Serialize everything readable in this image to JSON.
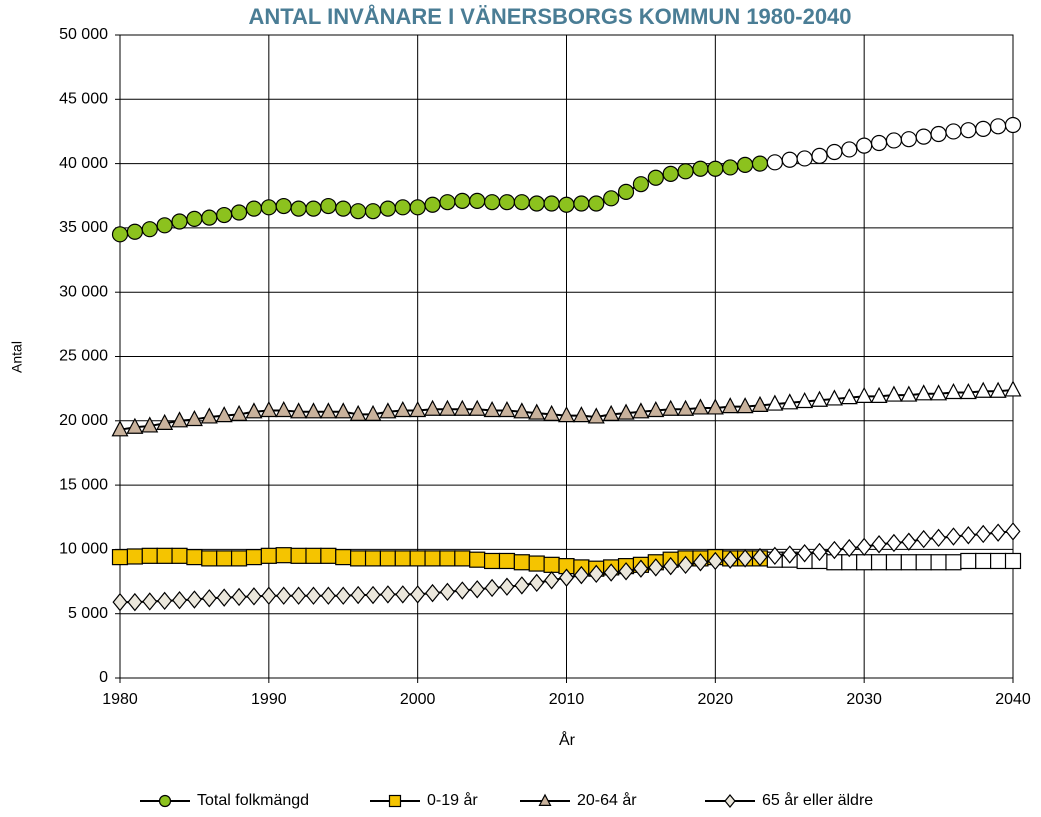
{
  "chart_data": {
    "type": "line",
    "title": "ANTAL INVÅNARE I VÄNERSBORGS KOMMUN 1980-2040",
    "xlabel": "År",
    "ylabel": "Antal",
    "x": [
      1980,
      1981,
      1982,
      1983,
      1984,
      1985,
      1986,
      1987,
      1988,
      1989,
      1990,
      1991,
      1992,
      1993,
      1994,
      1995,
      1996,
      1997,
      1998,
      1999,
      2000,
      2001,
      2002,
      2003,
      2004,
      2005,
      2006,
      2007,
      2008,
      2009,
      2010,
      2011,
      2012,
      2013,
      2014,
      2015,
      2016,
      2017,
      2018,
      2019,
      2020,
      2021,
      2022,
      2023,
      2024,
      2025,
      2026,
      2027,
      2028,
      2029,
      2030,
      2031,
      2032,
      2033,
      2034,
      2035,
      2036,
      2037,
      2038,
      2039,
      2040
    ],
    "xlim": [
      1980,
      2040
    ],
    "xticks": [
      1980,
      1990,
      2000,
      2010,
      2020,
      2030,
      2040
    ],
    "ylim": [
      0,
      50000
    ],
    "yticks": [
      0,
      {
        "value": 5000,
        "label": "5 000"
      },
      {
        "value": 10000,
        "label": "10 000"
      },
      {
        "value": 15000,
        "label": "15 000"
      },
      {
        "value": 20000,
        "label": "20 000"
      },
      {
        "value": 25000,
        "label": "25 000"
      },
      {
        "value": 30000,
        "label": "30 000"
      },
      {
        "value": 35000,
        "label": "35 000"
      },
      {
        "value": 40000,
        "label": "40 000"
      },
      {
        "value": 45000,
        "label": "45 000"
      },
      {
        "value": 50000,
        "label": "50 000"
      }
    ],
    "grid": true,
    "legend": "bottom",
    "series": [
      {
        "name": "Total folkmängd",
        "color": "#000000",
        "marker": "circle",
        "values": [
          34500,
          34700,
          34900,
          35200,
          35500,
          35700,
          35800,
          36000,
          36200,
          36500,
          36600,
          36700,
          36500,
          36500,
          36700,
          36500,
          36300,
          36300,
          36500,
          36600,
          36600,
          36800,
          37000,
          37100,
          37100,
          37000,
          37000,
          37000,
          36900,
          36900,
          36800,
          36900,
          36900,
          37300,
          37800,
          38400,
          38900,
          39200,
          39400,
          39600,
          39600,
          39700,
          39900,
          40000,
          40100,
          40300,
          40400,
          40600,
          40900,
          41100,
          41400,
          41600,
          41800,
          41900,
          42100,
          42300,
          42500,
          42600,
          42700,
          42900,
          43000
        ],
        "marker_fills": [
          "#8cc21e",
          "#8cc21e",
          "#8cc21e",
          "#8cc21e",
          "#8cc21e",
          "#8cc21e",
          "#8cc21e",
          "#8cc21e",
          "#8cc21e",
          "#8cc21e",
          "#8cc21e",
          "#8cc21e",
          "#8cc21e",
          "#8cc21e",
          "#8cc21e",
          "#8cc21e",
          "#8cc21e",
          "#8cc21e",
          "#8cc21e",
          "#8cc21e",
          "#8cc21e",
          "#8cc21e",
          "#8cc21e",
          "#8cc21e",
          "#8cc21e",
          "#8cc21e",
          "#8cc21e",
          "#8cc21e",
          "#8cc21e",
          "#8cc21e",
          "#8cc21e",
          "#8cc21e",
          "#8cc21e",
          "#8cc21e",
          "#8cc21e",
          "#8cc21e",
          "#8cc21e",
          "#8cc21e",
          "#8cc21e",
          "#8cc21e",
          "#8cc21e",
          "#8cc21e",
          "#8cc21e",
          "#8cc21e",
          "#ffffff",
          "#ffffff",
          "#ffffff",
          "#ffffff",
          "#ffffff",
          "#ffffff",
          "#ffffff",
          "#ffffff",
          "#ffffff",
          "#ffffff",
          "#ffffff",
          "#ffffff",
          "#ffffff",
          "#ffffff",
          "#ffffff",
          "#ffffff",
          "#ffffff"
        ]
      },
      {
        "name": "0-19 år",
        "color": "#000000",
        "marker": "square",
        "values": [
          9400,
          9450,
          9500,
          9500,
          9500,
          9400,
          9300,
          9300,
          9300,
          9400,
          9500,
          9550,
          9500,
          9500,
          9500,
          9400,
          9300,
          9300,
          9300,
          9300,
          9300,
          9300,
          9300,
          9300,
          9200,
          9100,
          9100,
          9000,
          8900,
          8800,
          8700,
          8600,
          8500,
          8600,
          8700,
          8800,
          9000,
          9200,
          9300,
          9300,
          9400,
          9300,
          9300,
          9300,
          9200,
          9200,
          9100,
          9100,
          9000,
          9000,
          9000,
          9000,
          9000,
          9000,
          9000,
          9000,
          9000,
          9100,
          9100,
          9100,
          9100
        ],
        "marker_fills": [
          "#f5c400",
          "#f5c400",
          "#f5c400",
          "#f5c400",
          "#f5c400",
          "#f5c400",
          "#f5c400",
          "#f5c400",
          "#f5c400",
          "#f5c400",
          "#f5c400",
          "#f5c400",
          "#f5c400",
          "#f5c400",
          "#f5c400",
          "#f5c400",
          "#f5c400",
          "#f5c400",
          "#f5c400",
          "#f5c400",
          "#f5c400",
          "#f5c400",
          "#f5c400",
          "#f5c400",
          "#f5c400",
          "#f5c400",
          "#f5c400",
          "#f5c400",
          "#f5c400",
          "#f5c400",
          "#f5c400",
          "#f5c400",
          "#f5c400",
          "#f5c400",
          "#f5c400",
          "#f5c400",
          "#f5c400",
          "#f5c400",
          "#f5c400",
          "#f5c400",
          "#f5c400",
          "#f5c400",
          "#f5c400",
          "#f5c400",
          "#ffffff",
          "#ffffff",
          "#ffffff",
          "#ffffff",
          "#ffffff",
          "#ffffff",
          "#ffffff",
          "#ffffff",
          "#ffffff",
          "#ffffff",
          "#ffffff",
          "#ffffff",
          "#ffffff",
          "#ffffff",
          "#ffffff",
          "#ffffff",
          "#ffffff"
        ]
      },
      {
        "name": "20-64 år",
        "color": "#000000",
        "marker": "triangle",
        "values": [
          19300,
          19500,
          19600,
          19800,
          20000,
          20100,
          20300,
          20400,
          20500,
          20700,
          20800,
          20800,
          20700,
          20700,
          20700,
          20700,
          20500,
          20500,
          20700,
          20800,
          20800,
          20900,
          20900,
          20900,
          20900,
          20800,
          20800,
          20700,
          20600,
          20500,
          20400,
          20400,
          20300,
          20500,
          20600,
          20700,
          20800,
          20900,
          20900,
          21000,
          21000,
          21100,
          21100,
          21200,
          21300,
          21400,
          21500,
          21600,
          21700,
          21800,
          21900,
          21900,
          22000,
          22000,
          22100,
          22100,
          22200,
          22200,
          22300,
          22300,
          22400
        ],
        "marker_fills": [
          "#c9b29c",
          "#c9b29c",
          "#c9b29c",
          "#c9b29c",
          "#c9b29c",
          "#c9b29c",
          "#c9b29c",
          "#c9b29c",
          "#c9b29c",
          "#c9b29c",
          "#c9b29c",
          "#c9b29c",
          "#c9b29c",
          "#c9b29c",
          "#c9b29c",
          "#c9b29c",
          "#c9b29c",
          "#c9b29c",
          "#c9b29c",
          "#c9b29c",
          "#c9b29c",
          "#c9b29c",
          "#c9b29c",
          "#c9b29c",
          "#c9b29c",
          "#c9b29c",
          "#c9b29c",
          "#c9b29c",
          "#c9b29c",
          "#c9b29c",
          "#c9b29c",
          "#c9b29c",
          "#c9b29c",
          "#c9b29c",
          "#c9b29c",
          "#c9b29c",
          "#c9b29c",
          "#c9b29c",
          "#c9b29c",
          "#c9b29c",
          "#c9b29c",
          "#c9b29c",
          "#c9b29c",
          "#c9b29c",
          "#ffffff",
          "#ffffff",
          "#ffffff",
          "#ffffff",
          "#ffffff",
          "#ffffff",
          "#ffffff",
          "#ffffff",
          "#ffffff",
          "#ffffff",
          "#ffffff",
          "#ffffff",
          "#ffffff",
          "#ffffff",
          "#ffffff",
          "#ffffff",
          "#ffffff"
        ]
      },
      {
        "name": "65 år eller äldre",
        "color": "#000000",
        "marker": "diamond",
        "values": [
          5900,
          5900,
          5950,
          6000,
          6050,
          6100,
          6200,
          6250,
          6300,
          6350,
          6400,
          6400,
          6400,
          6400,
          6400,
          6400,
          6450,
          6450,
          6500,
          6500,
          6500,
          6600,
          6700,
          6800,
          6900,
          7000,
          7100,
          7200,
          7400,
          7600,
          7800,
          8000,
          8100,
          8200,
          8300,
          8500,
          8600,
          8700,
          8800,
          9000,
          9100,
          9200,
          9300,
          9400,
          9500,
          9600,
          9700,
          9800,
          9950,
          10100,
          10200,
          10400,
          10500,
          10600,
          10800,
          10900,
          11000,
          11100,
          11200,
          11300,
          11400
        ],
        "marker_fills": [
          "#ebe7dc",
          "#ebe7dc",
          "#ebe7dc",
          "#ebe7dc",
          "#ebe7dc",
          "#ebe7dc",
          "#ebe7dc",
          "#ebe7dc",
          "#ebe7dc",
          "#ebe7dc",
          "#ebe7dc",
          "#ebe7dc",
          "#ebe7dc",
          "#ebe7dc",
          "#ebe7dc",
          "#ebe7dc",
          "#ebe7dc",
          "#ebe7dc",
          "#ebe7dc",
          "#ebe7dc",
          "#ebe7dc",
          "#ebe7dc",
          "#ebe7dc",
          "#ebe7dc",
          "#ebe7dc",
          "#ebe7dc",
          "#ebe7dc",
          "#ebe7dc",
          "#ebe7dc",
          "#ebe7dc",
          "#ebe7dc",
          "#ebe7dc",
          "#ebe7dc",
          "#ebe7dc",
          "#ebe7dc",
          "#ebe7dc",
          "#ebe7dc",
          "#ebe7dc",
          "#ebe7dc",
          "#ebe7dc",
          "#ebe7dc",
          "#ebe7dc",
          "#ebe7dc",
          "#ebe7dc",
          "#ffffff",
          "#ffffff",
          "#ffffff",
          "#ffffff",
          "#ffffff",
          "#ffffff",
          "#ffffff",
          "#ffffff",
          "#ffffff",
          "#ffffff",
          "#ffffff",
          "#ffffff",
          "#ffffff",
          "#ffffff",
          "#ffffff",
          "#ffffff",
          "#ffffff"
        ]
      }
    ]
  }
}
